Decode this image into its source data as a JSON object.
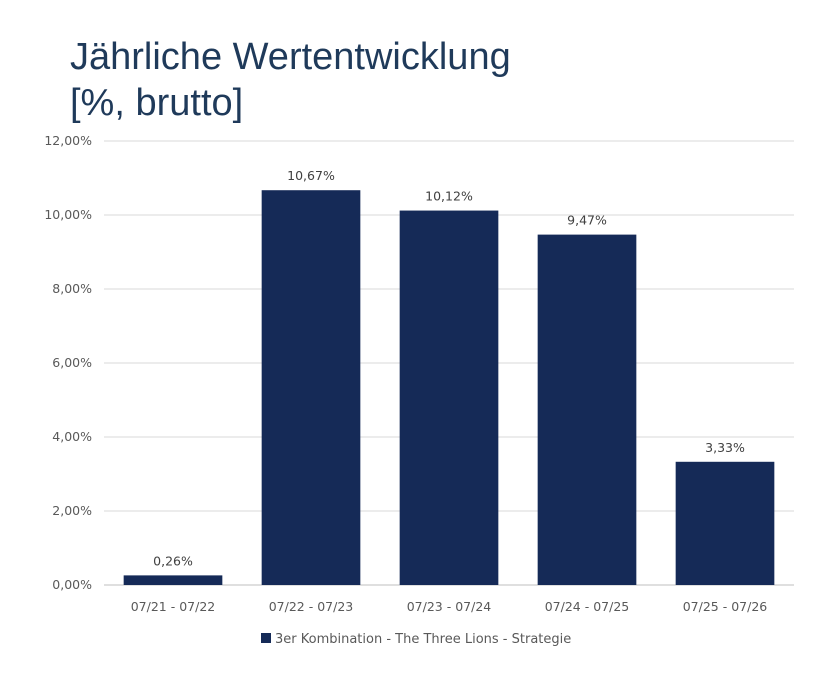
{
  "title_lines": [
    "Jährliche Wertentwicklung",
    "[%, brutto]"
  ],
  "colors": {
    "bar": "#152a57",
    "grid": "#d9d9d9",
    "axis": "#bfbfbf",
    "title": "#1f3a5a"
  },
  "chart_data": {
    "type": "bar",
    "title": "Jährliche Wertentwicklung [%, brutto]",
    "categories": [
      "07/21 - 07/22",
      "07/22 - 07/23",
      "07/23 - 07/24",
      "07/24 - 07/25",
      "07/25 - 07/26"
    ],
    "series": [
      {
        "name": "3er Kombination - The Three Lions - Strategie",
        "values": [
          0.26,
          10.67,
          10.12,
          9.47,
          3.33
        ],
        "labels": [
          "0,26%",
          "10,67%",
          "10,12%",
          "9,47%",
          "3,33%"
        ]
      }
    ],
    "ylim": [
      0,
      12
    ],
    "yticks": [
      "0,00%",
      "2,00%",
      "4,00%",
      "6,00%",
      "8,00%",
      "10,00%",
      "12,00%"
    ],
    "grid": true,
    "legend_position": "bottom"
  }
}
